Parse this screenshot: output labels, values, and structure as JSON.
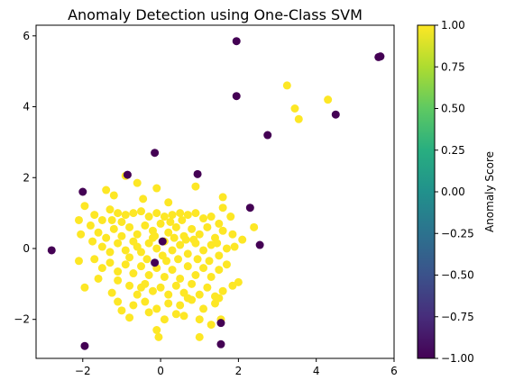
{
  "chart_data": {
    "type": "scatter",
    "title": "Anomaly Detection using One-Class SVM",
    "xlabel": "",
    "ylabel": "",
    "xlim": [
      -3.2,
      6.0
    ],
    "ylim": [
      -3.1,
      6.3
    ],
    "x_ticks": [
      -2,
      0,
      2,
      4,
      6
    ],
    "y_ticks": [
      -2,
      0,
      2,
      4,
      6
    ],
    "grid": false,
    "colorbar": {
      "label": "Anomaly Score",
      "range": [
        -1.0,
        1.0
      ],
      "ticks": [
        "-1.00",
        "-0.75",
        "-0.50",
        "-0.25",
        "0.00",
        "0.25",
        "0.50",
        "0.75",
        "1.00"
      ],
      "colormap": "viridis"
    },
    "colors": {
      "inlier": "#fde725",
      "outlier": "#440154"
    },
    "series": [
      {
        "score": 1,
        "points": [
          [
            3.25,
            4.6
          ],
          [
            4.3,
            4.2
          ],
          [
            3.45,
            3.95
          ],
          [
            3.55,
            3.65
          ],
          [
            -0.9,
            2.05
          ],
          [
            0.9,
            1.75
          ],
          [
            -0.1,
            1.7
          ],
          [
            -1.4,
            1.65
          ],
          [
            -0.6,
            1.85
          ],
          [
            1.6,
            1.45
          ],
          [
            1.6,
            1.15
          ],
          [
            -0.45,
            1.4
          ],
          [
            0.2,
            1.3
          ],
          [
            -1.2,
            1.5
          ],
          [
            -1.95,
            1.2
          ],
          [
            -1.7,
            0.95
          ],
          [
            -1.5,
            0.8
          ],
          [
            -1.3,
            1.1
          ],
          [
            -1.1,
            1.0
          ],
          [
            -0.9,
            0.95
          ],
          [
            -0.7,
            1.0
          ],
          [
            -0.5,
            1.05
          ],
          [
            -0.3,
            0.9
          ],
          [
            -0.1,
            1.0
          ],
          [
            0.1,
            0.9
          ],
          [
            0.3,
            0.95
          ],
          [
            0.5,
            1.0
          ],
          [
            0.7,
            0.95
          ],
          [
            0.9,
            1.0
          ],
          [
            1.1,
            0.85
          ],
          [
            1.3,
            0.9
          ],
          [
            1.5,
            0.7
          ],
          [
            1.8,
            0.9
          ],
          [
            1.85,
            0.4
          ],
          [
            2.4,
            0.6
          ],
          [
            1.9,
            0.05
          ],
          [
            2.1,
            0.25
          ],
          [
            -2.1,
            0.8
          ],
          [
            -2.05,
            0.4
          ],
          [
            -1.8,
            0.65
          ],
          [
            -1.75,
            0.2
          ],
          [
            -1.6,
            0.45
          ],
          [
            -1.4,
            0.3
          ],
          [
            -1.2,
            0.55
          ],
          [
            -1.0,
            0.35
          ],
          [
            -0.8,
            0.6
          ],
          [
            -0.6,
            0.4
          ],
          [
            -0.4,
            0.65
          ],
          [
            -0.2,
            0.5
          ],
          [
            0.0,
            0.7
          ],
          [
            0.2,
            0.45
          ],
          [
            0.4,
            0.6
          ],
          [
            0.6,
            0.35
          ],
          [
            0.8,
            0.55
          ],
          [
            1.0,
            0.4
          ],
          [
            1.2,
            0.6
          ],
          [
            1.4,
            0.3
          ],
          [
            1.6,
            0.5
          ],
          [
            -1.5,
            0.05
          ],
          [
            -1.3,
            -0.1
          ],
          [
            -1.1,
            0.15
          ],
          [
            -0.9,
            -0.05
          ],
          [
            -0.7,
            0.2
          ],
          [
            -0.5,
            -0.1
          ],
          [
            -0.3,
            0.15
          ],
          [
            -0.1,
            0.0
          ],
          [
            0.1,
            0.2
          ],
          [
            0.3,
            -0.05
          ],
          [
            0.5,
            0.1
          ],
          [
            0.7,
            -0.15
          ],
          [
            0.9,
            0.15
          ],
          [
            1.1,
            -0.05
          ],
          [
            1.3,
            0.1
          ],
          [
            1.5,
            -0.2
          ],
          [
            1.7,
            0.0
          ],
          [
            -2.1,
            -0.35
          ],
          [
            -1.7,
            -0.3
          ],
          [
            -1.5,
            -0.55
          ],
          [
            -1.3,
            -0.4
          ],
          [
            -1.1,
            -0.65
          ],
          [
            -0.9,
            -0.45
          ],
          [
            -0.7,
            -0.7
          ],
          [
            -0.5,
            -0.5
          ],
          [
            -0.3,
            -0.75
          ],
          [
            -0.1,
            -0.55
          ],
          [
            0.1,
            -0.8
          ],
          [
            0.3,
            -0.6
          ],
          [
            0.5,
            -0.85
          ],
          [
            0.7,
            -0.5
          ],
          [
            0.9,
            -0.75
          ],
          [
            1.1,
            -0.55
          ],
          [
            1.3,
            -0.8
          ],
          [
            1.5,
            -0.6
          ],
          [
            1.7,
            -0.45
          ],
          [
            2.0,
            -0.95
          ],
          [
            -1.95,
            -1.1
          ],
          [
            -1.6,
            -0.85
          ],
          [
            -1.1,
            -0.9
          ],
          [
            -0.8,
            -1.05
          ],
          [
            -0.6,
            -1.3
          ],
          [
            -0.4,
            -1.0
          ],
          [
            -0.2,
            -1.2
          ],
          [
            0.0,
            -1.1
          ],
          [
            0.2,
            -1.3
          ],
          [
            0.4,
            -1.05
          ],
          [
            0.6,
            -1.25
          ],
          [
            0.8,
            -1.0
          ],
          [
            1.0,
            -1.3
          ],
          [
            1.2,
            -1.1
          ],
          [
            1.4,
            -1.35
          ],
          [
            1.6,
            -1.2
          ],
          [
            -1.1,
            -1.5
          ],
          [
            -0.7,
            -1.6
          ],
          [
            -0.4,
            -1.5
          ],
          [
            -0.1,
            -1.7
          ],
          [
            0.2,
            -1.55
          ],
          [
            0.5,
            -1.6
          ],
          [
            0.8,
            -1.45
          ],
          [
            1.1,
            -1.7
          ],
          [
            1.5,
            -1.4
          ],
          [
            -1.0,
            -1.75
          ],
          [
            -0.8,
            -1.95
          ],
          [
            -0.3,
            -1.8
          ],
          [
            0.1,
            -2.0
          ],
          [
            0.4,
            -1.85
          ],
          [
            0.6,
            -1.9
          ],
          [
            1.0,
            -2.0
          ],
          [
            1.3,
            -2.15
          ],
          [
            1.55,
            -2.0
          ],
          [
            -0.1,
            -2.3
          ],
          [
            -0.05,
            -2.5
          ],
          [
            1.0,
            -2.5
          ],
          [
            1.4,
            -1.55
          ],
          [
            0.7,
            -1.4
          ],
          [
            -0.5,
            -1.1
          ],
          [
            -1.25,
            -1.25
          ],
          [
            1.85,
            -1.05
          ],
          [
            -0.2,
            0.3
          ],
          [
            0.15,
            -0.35
          ],
          [
            -0.35,
            -0.3
          ],
          [
            0.45,
            -0.3
          ],
          [
            0.65,
            0.25
          ],
          [
            -0.6,
            0.05
          ],
          [
            -0.8,
            -0.25
          ],
          [
            0.95,
            -0.3
          ],
          [
            1.25,
            -0.35
          ],
          [
            1.45,
            0.15
          ],
          [
            -1.0,
            0.75
          ],
          [
            -1.25,
            0.8
          ],
          [
            0.25,
            0.75
          ],
          [
            0.55,
            0.8
          ],
          [
            0.85,
            0.25
          ],
          [
            -0.15,
            0.35
          ],
          [
            0.05,
            -0.2
          ],
          [
            0.35,
            0.3
          ]
        ]
      },
      {
        "score": -1,
        "points": [
          [
            5.6,
            5.4
          ],
          [
            5.65,
            5.42
          ],
          [
            1.95,
            5.85
          ],
          [
            1.95,
            4.3
          ],
          [
            4.5,
            3.78
          ],
          [
            2.75,
            3.2
          ],
          [
            -0.15,
            2.7
          ],
          [
            0.95,
            2.1
          ],
          [
            -0.85,
            2.08
          ],
          [
            -2.0,
            1.6
          ],
          [
            2.3,
            1.15
          ],
          [
            2.55,
            0.1
          ],
          [
            -2.8,
            -0.05
          ],
          [
            1.55,
            -2.1
          ],
          [
            1.55,
            -2.7
          ],
          [
            -1.95,
            -2.75
          ],
          [
            0.05,
            0.2
          ],
          [
            -0.15,
            -0.4
          ]
        ]
      }
    ]
  }
}
